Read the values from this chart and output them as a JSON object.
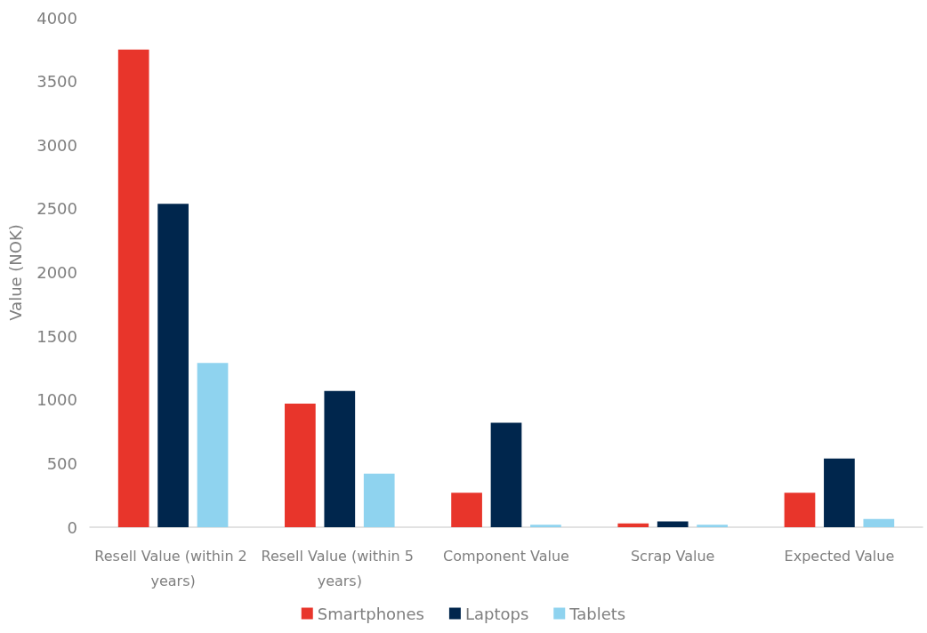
{
  "chart_data": {
    "type": "bar",
    "ylabel": "Value (NOK)",
    "categories": [
      "Resell Value (within 2 years)",
      "Resell Value (within 5 years)",
      "Component Value",
      "Scrap Value",
      "Expected Value"
    ],
    "series": [
      {
        "name": "Smartphones",
        "color": "#e8352b",
        "values": [
          3750,
          970,
          270,
          30,
          270
        ]
      },
      {
        "name": "Laptops",
        "color": "#00264d",
        "values": [
          2540,
          1070,
          820,
          45,
          540
        ]
      },
      {
        "name": "Tablets",
        "color": "#8fd3ef",
        "values": [
          1290,
          420,
          20,
          20,
          65
        ]
      }
    ],
    "ylim": [
      0,
      4000
    ],
    "yticks": [
      0,
      500,
      1000,
      1500,
      2000,
      2500,
      3000,
      3500,
      4000
    ],
    "grid": false,
    "legend": "bottom"
  }
}
